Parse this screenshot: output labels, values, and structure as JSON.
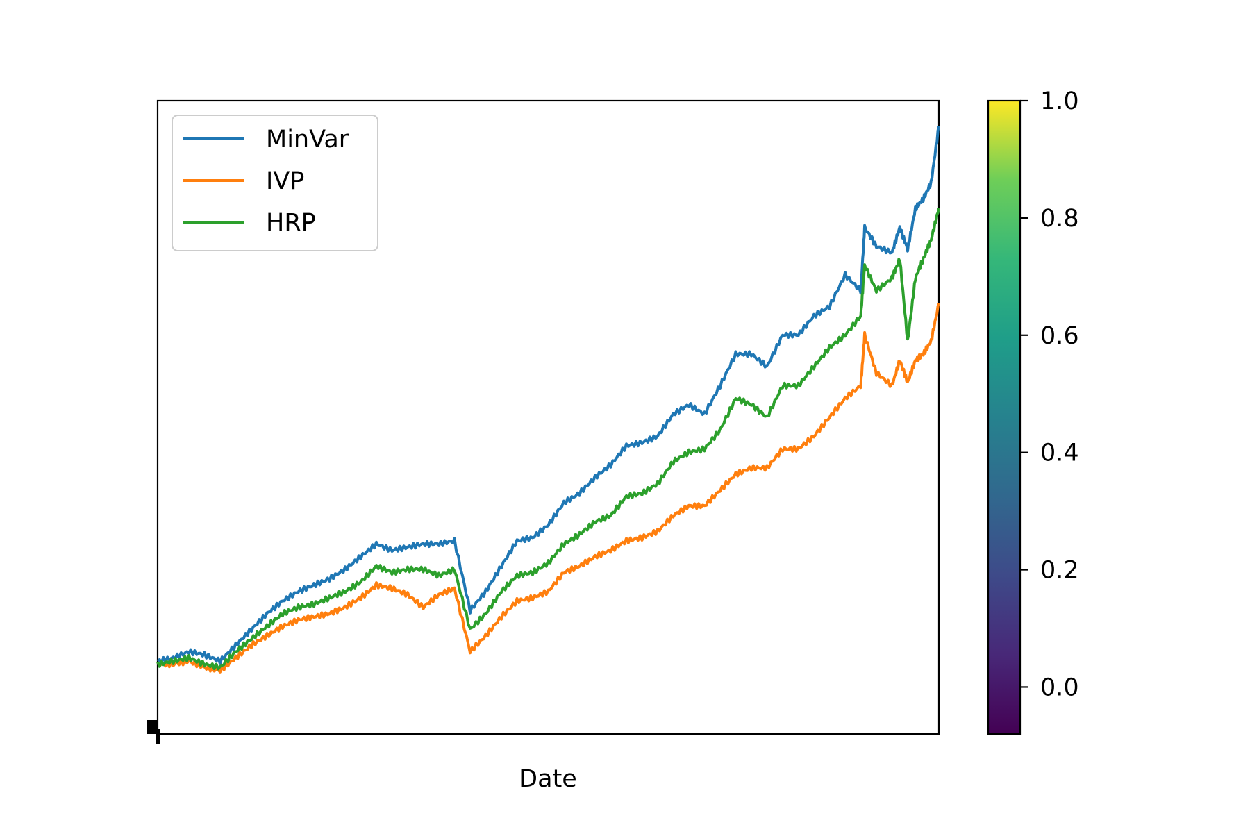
{
  "chart_data": {
    "type": "line",
    "title": "",
    "xlabel": "Date",
    "ylabel": "",
    "x_range": [
      0,
      1
    ],
    "y_range": [
      0,
      1
    ],
    "grid": false,
    "legend_placement": "top-left",
    "series": [
      {
        "name": "MinVar",
        "color": "#1f77b4",
        "x": [
          0.0,
          0.02,
          0.04,
          0.06,
          0.08,
          0.1,
          0.12,
          0.14,
          0.16,
          0.18,
          0.2,
          0.22,
          0.24,
          0.26,
          0.28,
          0.3,
          0.32,
          0.34,
          0.36,
          0.38,
          0.4,
          0.42,
          0.44,
          0.46,
          0.48,
          0.5,
          0.52,
          0.54,
          0.56,
          0.58,
          0.6,
          0.62,
          0.64,
          0.66,
          0.68,
          0.7,
          0.72,
          0.74,
          0.76,
          0.78,
          0.8,
          0.82,
          0.84,
          0.86,
          0.88,
          0.9,
          0.905,
          0.92,
          0.94,
          0.95,
          0.96,
          0.97,
          0.98,
          0.99,
          1.0
        ],
        "y": [
          0.115,
          0.12,
          0.13,
          0.125,
          0.115,
          0.14,
          0.165,
          0.19,
          0.21,
          0.225,
          0.235,
          0.245,
          0.26,
          0.28,
          0.3,
          0.29,
          0.295,
          0.3,
          0.3,
          0.305,
          0.195,
          0.225,
          0.265,
          0.305,
          0.31,
          0.33,
          0.365,
          0.38,
          0.405,
          0.425,
          0.455,
          0.46,
          0.47,
          0.505,
          0.52,
          0.505,
          0.55,
          0.6,
          0.6,
          0.58,
          0.63,
          0.63,
          0.66,
          0.675,
          0.725,
          0.7,
          0.8,
          0.77,
          0.76,
          0.8,
          0.765,
          0.83,
          0.845,
          0.87,
          0.96
        ]
      },
      {
        "name": "IVP",
        "color": "#ff7f0e",
        "x": [
          0.0,
          0.02,
          0.04,
          0.06,
          0.08,
          0.1,
          0.12,
          0.14,
          0.16,
          0.18,
          0.2,
          0.22,
          0.24,
          0.26,
          0.28,
          0.3,
          0.32,
          0.34,
          0.36,
          0.38,
          0.4,
          0.42,
          0.44,
          0.46,
          0.48,
          0.5,
          0.52,
          0.54,
          0.56,
          0.58,
          0.6,
          0.62,
          0.64,
          0.66,
          0.68,
          0.7,
          0.72,
          0.74,
          0.76,
          0.78,
          0.8,
          0.82,
          0.84,
          0.86,
          0.88,
          0.9,
          0.905,
          0.92,
          0.94,
          0.95,
          0.96,
          0.97,
          0.98,
          0.99,
          1.0
        ],
        "y": [
          0.11,
          0.11,
          0.115,
          0.105,
          0.1,
          0.12,
          0.14,
          0.155,
          0.17,
          0.18,
          0.185,
          0.19,
          0.2,
          0.215,
          0.235,
          0.23,
          0.22,
          0.2,
          0.22,
          0.23,
          0.13,
          0.155,
          0.185,
          0.21,
          0.215,
          0.225,
          0.255,
          0.265,
          0.28,
          0.29,
          0.305,
          0.31,
          0.32,
          0.345,
          0.36,
          0.36,
          0.385,
          0.41,
          0.42,
          0.42,
          0.45,
          0.45,
          0.47,
          0.5,
          0.53,
          0.55,
          0.63,
          0.57,
          0.55,
          0.59,
          0.555,
          0.59,
          0.6,
          0.62,
          0.68
        ]
      },
      {
        "name": "HRP",
        "color": "#2ca02c",
        "x": [
          0.0,
          0.02,
          0.04,
          0.06,
          0.08,
          0.1,
          0.12,
          0.14,
          0.16,
          0.18,
          0.2,
          0.22,
          0.24,
          0.26,
          0.28,
          0.3,
          0.32,
          0.34,
          0.36,
          0.38,
          0.4,
          0.42,
          0.44,
          0.46,
          0.48,
          0.5,
          0.52,
          0.54,
          0.56,
          0.58,
          0.6,
          0.62,
          0.64,
          0.66,
          0.68,
          0.7,
          0.72,
          0.74,
          0.76,
          0.78,
          0.8,
          0.82,
          0.84,
          0.86,
          0.88,
          0.9,
          0.905,
          0.92,
          0.94,
          0.95,
          0.96,
          0.97,
          0.98,
          0.99,
          1.0
        ],
        "y": [
          0.11,
          0.115,
          0.12,
          0.11,
          0.105,
          0.13,
          0.15,
          0.17,
          0.19,
          0.2,
          0.205,
          0.215,
          0.225,
          0.24,
          0.265,
          0.255,
          0.26,
          0.26,
          0.25,
          0.26,
          0.165,
          0.19,
          0.225,
          0.25,
          0.255,
          0.27,
          0.3,
          0.315,
          0.335,
          0.345,
          0.375,
          0.38,
          0.395,
          0.43,
          0.445,
          0.45,
          0.48,
          0.53,
          0.52,
          0.5,
          0.55,
          0.55,
          0.58,
          0.61,
          0.63,
          0.66,
          0.74,
          0.7,
          0.72,
          0.75,
          0.62,
          0.72,
          0.75,
          0.78,
          0.83
        ]
      }
    ],
    "colorbar": {
      "colormap": "viridis",
      "range": [
        -0.08,
        1.0
      ],
      "ticks": [
        0.0,
        0.2,
        0.4,
        0.6,
        0.8,
        1.0
      ],
      "tick_labels": [
        "0.0",
        "0.2",
        "0.4",
        "0.6",
        "0.8",
        "1.0"
      ]
    }
  }
}
